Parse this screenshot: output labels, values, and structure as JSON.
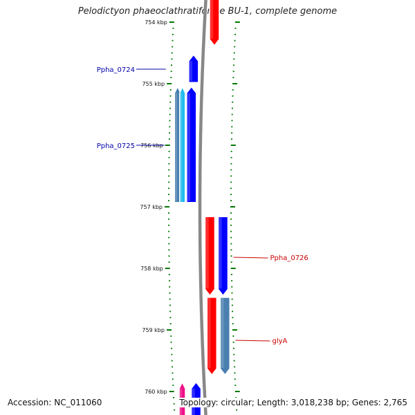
{
  "title": "Pelodictyon phaeoclathratiforme BU-1, complete genome",
  "footer": {
    "accession": "Accession: NC_011060",
    "topology": "Topology: circular; Length: 3,018,238 bp; Genes: 2,765"
  },
  "colors": {
    "forward": "#ff0000",
    "reverse": "#0000ff",
    "steel": "#4a7fb0",
    "cyan": "#22bbee",
    "magenta": "#ee1188",
    "tick": "#007700",
    "backbone": "#888888",
    "label_blue": "#0000aa",
    "label_red": "#cc0000"
  },
  "ticks": [
    {
      "label": "754 kbp",
      "kbp": 754
    },
    {
      "label": "755 kbp",
      "kbp": 755
    },
    {
      "label": "756 kbp",
      "kbp": 756
    },
    {
      "label": "757 kbp",
      "kbp": 757
    },
    {
      "label": "758 kbp",
      "kbp": 758
    },
    {
      "label": "759 kbp",
      "kbp": 759
    },
    {
      "label": "760 kbp",
      "kbp": 760
    }
  ],
  "genes": [
    {
      "id": "top-red",
      "strand": "forward",
      "lane": "outer",
      "start_kbp": 753.55,
      "end_kbp": 754.38,
      "color": "forward"
    },
    {
      "id": "Ppha_0724",
      "strand": "reverse",
      "lane": "inner",
      "start_kbp": 754.53,
      "end_kbp": 754.98,
      "color": "reverse",
      "label": "Ppha_0724"
    },
    {
      "id": "Ppha_0725",
      "strand": "reverse",
      "lane": "inner",
      "start_kbp": 755.05,
      "end_kbp": 756.93,
      "color": "reverse",
      "label": "Ppha_0725"
    },
    {
      "id": "cds-steel-a",
      "strand": "reverse",
      "lane": "inner2",
      "start_kbp": 755.05,
      "end_kbp": 756.93,
      "color": "steel"
    },
    {
      "id": "cds-cyan-a",
      "strand": "reverse",
      "lane": "inner3",
      "start_kbp": 755.05,
      "end_kbp": 756.93,
      "color": "cyan"
    },
    {
      "id": "cds-red-b",
      "strand": "forward",
      "lane": "outer",
      "start_kbp": 757.16,
      "end_kbp": 758.44,
      "color": "forward"
    },
    {
      "id": "Ppha_0726",
      "strand": "forward",
      "lane": "outer2",
      "start_kbp": 757.16,
      "end_kbp": 758.44,
      "color": "reverse",
      "label": "Ppha_0726"
    },
    {
      "id": "cds-red-c",
      "strand": "forward",
      "lane": "outer",
      "start_kbp": 758.47,
      "end_kbp": 759.73,
      "color": "forward"
    },
    {
      "id": "glyA",
      "strand": "forward",
      "lane": "outer2",
      "start_kbp": 758.47,
      "end_kbp": 759.73,
      "color": "steel",
      "label": "glyA"
    },
    {
      "id": "cds-magenta",
      "strand": "reverse",
      "lane": "inner2",
      "start_kbp": 759.85,
      "end_kbp": 760.5,
      "color": "magenta"
    },
    {
      "id": "cds-blue-d",
      "strand": "reverse",
      "lane": "inner",
      "start_kbp": 759.85,
      "end_kbp": 760.5,
      "color": "reverse"
    }
  ]
}
